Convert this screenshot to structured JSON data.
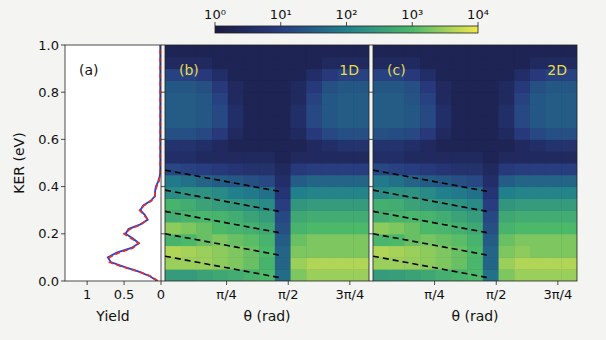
{
  "chart_data": [
    {
      "type": "line",
      "panel_label": "(a)",
      "xlabel": "Yield",
      "ylabel": "KER (eV)",
      "xlim": [
        1.3,
        0
      ],
      "xticks": [
        1,
        0.5,
        0
      ],
      "ylim": [
        0,
        1
      ],
      "yticks": [
        {
          "value": 0,
          "label": "0.0"
        },
        {
          "value": 0.2,
          "label": "0.2"
        },
        {
          "value": 0.4,
          "label": "0.4"
        },
        {
          "value": 0.6,
          "label": "0.6"
        },
        {
          "value": 0.8,
          "label": "0.8"
        },
        {
          "value": 1.0,
          "label": "1.0"
        }
      ],
      "tick_labels": true,
      "y": [
        0,
        0.02,
        0.04,
        0.06,
        0.08,
        0.1,
        0.12,
        0.14,
        0.16,
        0.18,
        0.2,
        0.22,
        0.24,
        0.26,
        0.28,
        0.3,
        0.32,
        0.34,
        0.36,
        0.38,
        0.4,
        0.42,
        0.44,
        0.46,
        0.48,
        0.5,
        0.55,
        0.6,
        0.65,
        0.7,
        0.75,
        0.8,
        0.85,
        0.9,
        0.95,
        1.0
      ],
      "series": [
        {
          "color": "#2040e0",
          "line_style": "solid",
          "values": [
            0.05,
            0.15,
            0.3,
            0.5,
            0.68,
            0.72,
            0.6,
            0.4,
            0.3,
            0.38,
            0.48,
            0.44,
            0.28,
            0.18,
            0.22,
            0.28,
            0.24,
            0.14,
            0.08,
            0.08,
            0.07,
            0.04,
            0.02,
            0.01,
            0.01,
            0.01,
            0.01,
            0.01,
            0.01,
            0.01,
            0.01,
            0.01,
            0.01,
            0.01,
            0.01,
            0.01
          ]
        },
        {
          "color": "#e03030",
          "line_style": "dashed",
          "values": [
            0.04,
            0.14,
            0.3,
            0.52,
            0.7,
            0.7,
            0.57,
            0.38,
            0.3,
            0.4,
            0.5,
            0.42,
            0.27,
            0.18,
            0.23,
            0.29,
            0.23,
            0.13,
            0.08,
            0.08,
            0.06,
            0.03,
            0.02,
            0.01,
            0.01,
            0.01,
            0.01,
            0.01,
            0.01,
            0.01,
            0.01,
            0.01,
            0.01,
            0.01,
            0.01,
            0.01
          ]
        }
      ]
    },
    {
      "type": "heatmap",
      "panel_label": "(b)",
      "title": "1D",
      "xlabel": "θ (rad)",
      "xlim": [
        0,
        2.6
      ],
      "xticks": [
        {
          "value": 0.785,
          "label": "π/4"
        },
        {
          "value": 1.571,
          "label": "π/2"
        },
        {
          "value": 2.356,
          "label": "3π/4"
        }
      ],
      "ylim": [
        0,
        1
      ],
      "yticks": [
        0,
        0.2,
        0.4,
        0.6,
        0.8,
        1.0
      ],
      "tick_labels": "x",
      "colorbar": {
        "range": [
          1,
          10000
        ],
        "log": true,
        "ticks": [
          {
            "value": 1,
            "label": "10⁰"
          },
          {
            "value": 10,
            "label": "10¹"
          },
          {
            "value": 100,
            "label": "10²"
          },
          {
            "value": 1000,
            "label": "10³"
          },
          {
            "value": 10000,
            "label": "10⁴"
          }
        ]
      },
      "x_edges": [
        0,
        0.2,
        0.4,
        0.6,
        0.8,
        1.0,
        1.2,
        1.4,
        1.6,
        1.8,
        2.0,
        2.2,
        2.4,
        2.6
      ],
      "y_edges": [
        0,
        0.05,
        0.1,
        0.15,
        0.2,
        0.25,
        0.3,
        0.35,
        0.4,
        0.45,
        0.5,
        0.55,
        0.6,
        0.65,
        0.7,
        0.75,
        0.8,
        0.85,
        0.9,
        0.95,
        1.0
      ],
      "cells": [
        [
          300,
          300,
          400,
          500,
          600,
          800,
          1000,
          50,
          2000,
          3000,
          3000,
          3000,
          3000
        ],
        [
          3000,
          3000,
          3000,
          2500,
          2000,
          1500,
          800,
          40,
          3000,
          4000,
          4000,
          4000,
          4000
        ],
        [
          4000,
          3500,
          3000,
          2500,
          2000,
          1500,
          1000,
          40,
          2000,
          2000,
          2000,
          2000,
          2000
        ],
        [
          800,
          1000,
          1500,
          2000,
          1500,
          1200,
          800,
          30,
          1500,
          2000,
          2000,
          2000,
          2000
        ],
        [
          2500,
          2000,
          1500,
          1000,
          800,
          700,
          500,
          20,
          800,
          1000,
          1000,
          1000,
          1000
        ],
        [
          600,
          800,
          900,
          800,
          600,
          400,
          300,
          15,
          500,
          600,
          600,
          600,
          600
        ],
        [
          800,
          600,
          400,
          300,
          250,
          200,
          150,
          10,
          250,
          300,
          300,
          300,
          300
        ],
        [
          150,
          200,
          200,
          150,
          100,
          80,
          60,
          6,
          100,
          120,
          120,
          120,
          120
        ],
        [
          80,
          60,
          40,
          30,
          25,
          20,
          15,
          4,
          30,
          40,
          40,
          40,
          40
        ],
        [
          15,
          12,
          10,
          8,
          6,
          5,
          5,
          3,
          8,
          10,
          10,
          10,
          10
        ],
        [
          4,
          4,
          3,
          3,
          3,
          3,
          3,
          2,
          3,
          3,
          3,
          3,
          3
        ],
        [
          5,
          5,
          4,
          3,
          2,
          2,
          2,
          2,
          2,
          3,
          4,
          5,
          5
        ],
        [
          20,
          20,
          15,
          8,
          3,
          2,
          2,
          2,
          3,
          8,
          15,
          20,
          20
        ],
        [
          30,
          30,
          25,
          15,
          4,
          2,
          2,
          2,
          4,
          15,
          25,
          30,
          30
        ],
        [
          30,
          30,
          25,
          15,
          4,
          2,
          2,
          2,
          4,
          15,
          25,
          30,
          30
        ],
        [
          30,
          30,
          25,
          12,
          3,
          2,
          2,
          2,
          3,
          12,
          25,
          30,
          30
        ],
        [
          25,
          25,
          20,
          8,
          3,
          2,
          2,
          2,
          3,
          8,
          20,
          25,
          25
        ],
        [
          12,
          12,
          8,
          4,
          2,
          2,
          2,
          2,
          2,
          4,
          8,
          12,
          12
        ],
        [
          3,
          3,
          3,
          2,
          2,
          2,
          2,
          2,
          2,
          2,
          3,
          3,
          3
        ],
        [
          2,
          2,
          2,
          2,
          2,
          2,
          2,
          2,
          2,
          2,
          2,
          2,
          2
        ]
      ],
      "series": [
        {
          "color": "#000000",
          "line_style": "dashed",
          "x": [
            0,
            1.45
          ],
          "y": [
            0.47,
            0.38
          ]
        },
        {
          "color": "#000000",
          "line_style": "dashed",
          "x": [
            0,
            1.45
          ],
          "y": [
            0.385,
            0.295
          ]
        },
        {
          "color": "#000000",
          "line_style": "dashed",
          "x": [
            0,
            1.45
          ],
          "y": [
            0.295,
            0.205
          ]
        },
        {
          "color": "#000000",
          "line_style": "dashed",
          "x": [
            0,
            1.45
          ],
          "y": [
            0.2,
            0.11
          ]
        },
        {
          "color": "#000000",
          "line_style": "dashed",
          "x": [
            0,
            1.45
          ],
          "y": [
            0.105,
            0.015
          ]
        }
      ]
    },
    {
      "type": "heatmap",
      "panel_label": "(c)",
      "title": "2D",
      "xlabel": "θ (rad)",
      "xlim": [
        0,
        2.6
      ],
      "xticks": [
        {
          "value": 0.785,
          "label": "π/4"
        },
        {
          "value": 1.571,
          "label": "π/2"
        },
        {
          "value": 2.356,
          "label": "3π/4"
        }
      ],
      "ylim": [
        0,
        1
      ],
      "yticks": [
        0,
        0.2,
        0.4,
        0.6,
        0.8,
        1.0
      ],
      "tick_labels": "x",
      "x_edges": [
        0,
        0.2,
        0.4,
        0.6,
        0.8,
        1.0,
        1.2,
        1.4,
        1.6,
        1.8,
        2.0,
        2.2,
        2.4,
        2.6
      ],
      "y_edges": [
        0,
        0.05,
        0.1,
        0.15,
        0.2,
        0.25,
        0.3,
        0.35,
        0.4,
        0.45,
        0.5,
        0.55,
        0.6,
        0.65,
        0.7,
        0.75,
        0.8,
        0.85,
        0.9,
        0.95,
        1.0
      ],
      "cells": [
        [
          300,
          350,
          400,
          500,
          700,
          800,
          1000,
          60,
          2000,
          3000,
          3000,
          3000,
          3000
        ],
        [
          3000,
          3000,
          2800,
          2500,
          2000,
          1500,
          900,
          40,
          3000,
          4000,
          4000,
          4000,
          4000
        ],
        [
          4000,
          3500,
          3000,
          2500,
          2000,
          1500,
          1000,
          40,
          2000,
          2500,
          2000,
          2000,
          2000
        ],
        [
          900,
          1000,
          1500,
          1800,
          1500,
          1200,
          800,
          30,
          1500,
          2000,
          2000,
          2000,
          2000
        ],
        [
          2500,
          2000,
          1500,
          1000,
          900,
          700,
          500,
          20,
          800,
          1000,
          1000,
          1000,
          1000
        ],
        [
          600,
          800,
          900,
          800,
          600,
          400,
          300,
          15,
          500,
          600,
          600,
          600,
          600
        ],
        [
          700,
          600,
          400,
          300,
          250,
          200,
          150,
          10,
          250,
          300,
          300,
          300,
          300
        ],
        [
          150,
          200,
          200,
          150,
          100,
          80,
          60,
          6,
          100,
          120,
          120,
          120,
          120
        ],
        [
          80,
          60,
          40,
          30,
          25,
          20,
          15,
          4,
          30,
          40,
          40,
          40,
          40
        ],
        [
          15,
          12,
          10,
          8,
          6,
          5,
          5,
          3,
          8,
          10,
          10,
          10,
          10
        ],
        [
          4,
          4,
          3,
          3,
          3,
          3,
          3,
          2,
          3,
          3,
          3,
          3,
          3
        ],
        [
          5,
          5,
          4,
          3,
          2,
          2,
          2,
          2,
          2,
          3,
          4,
          5,
          5
        ],
        [
          20,
          18,
          15,
          8,
          3,
          2,
          2,
          2,
          3,
          8,
          15,
          20,
          20
        ],
        [
          30,
          30,
          25,
          15,
          4,
          2,
          2,
          2,
          4,
          15,
          25,
          30,
          30
        ],
        [
          30,
          30,
          25,
          15,
          4,
          2,
          2,
          2,
          4,
          15,
          25,
          30,
          30
        ],
        [
          30,
          30,
          22,
          12,
          3,
          2,
          2,
          2,
          3,
          12,
          25,
          30,
          30
        ],
        [
          25,
          25,
          20,
          8,
          3,
          2,
          2,
          2,
          3,
          8,
          20,
          25,
          25
        ],
        [
          12,
          12,
          8,
          4,
          2,
          2,
          2,
          2,
          2,
          4,
          8,
          12,
          12
        ],
        [
          3,
          3,
          3,
          2,
          2,
          2,
          2,
          2,
          2,
          2,
          3,
          3,
          3
        ],
        [
          2,
          2,
          2,
          2,
          2,
          2,
          2,
          2,
          2,
          2,
          2,
          2,
          2
        ]
      ],
      "series": [
        {
          "color": "#000000",
          "line_style": "dashed",
          "x": [
            0,
            1.45
          ],
          "y": [
            0.47,
            0.38
          ]
        },
        {
          "color": "#000000",
          "line_style": "dashed",
          "x": [
            0,
            1.45
          ],
          "y": [
            0.385,
            0.295
          ]
        },
        {
          "color": "#000000",
          "line_style": "dashed",
          "x": [
            0,
            1.45
          ],
          "y": [
            0.295,
            0.205
          ]
        },
        {
          "color": "#000000",
          "line_style": "dashed",
          "x": [
            0,
            1.45
          ],
          "y": [
            0.2,
            0.11
          ]
        },
        {
          "color": "#000000",
          "line_style": "dashed",
          "x": [
            0,
            1.45
          ],
          "y": [
            0.105,
            0.015
          ]
        }
      ]
    }
  ]
}
